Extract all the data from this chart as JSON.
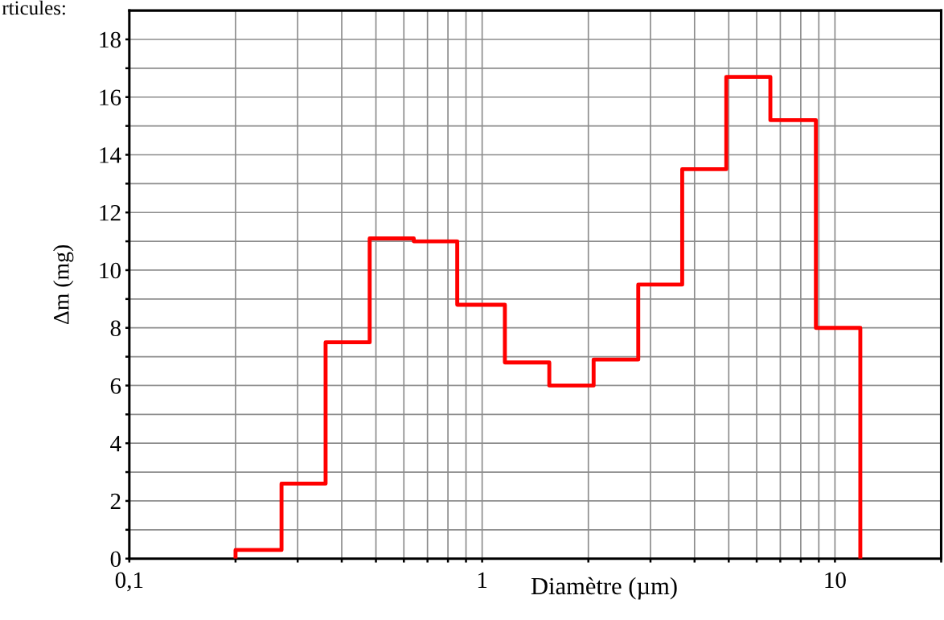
{
  "chart_data": {
    "type": "histogram",
    "xlabel": "Diamètre (µm)",
    "ylabel": "Δm (mg)",
    "annotations": [
      "rticules:"
    ],
    "bins": [
      0.2,
      0.27,
      0.36,
      0.48,
      0.64,
      0.85,
      1.16,
      1.55,
      2.07,
      2.77,
      3.69,
      4.92,
      6.56,
      8.83,
      11.8
    ],
    "values": [
      0.3,
      2.6,
      7.5,
      11.1,
      11.0,
      8.8,
      6.8,
      6.0,
      6.9,
      9.5,
      13.5,
      16.7,
      15.2,
      8.0
    ],
    "color": "#ff0000",
    "log": "x",
    "grid": true,
    "xlim": [
      0.1,
      20
    ],
    "xticks": [
      {
        "value": 0.1,
        "label": "0,1"
      },
      {
        "value": 0.2,
        "label": null
      },
      {
        "value": 0.3,
        "label": null
      },
      {
        "value": 0.4,
        "label": null
      },
      {
        "value": 0.5,
        "label": null
      },
      {
        "value": 0.6,
        "label": null
      },
      {
        "value": 0.7,
        "label": null
      },
      {
        "value": 0.8,
        "label": null
      },
      {
        "value": 0.9,
        "label": null
      },
      1,
      {
        "value": 2,
        "label": null
      },
      {
        "value": 3,
        "label": null
      },
      {
        "value": 4,
        "label": null
      },
      {
        "value": 5,
        "label": null
      },
      {
        "value": 6,
        "label": null
      },
      {
        "value": 7,
        "label": null
      },
      {
        "value": 8,
        "label": null
      },
      {
        "value": 9,
        "label": null
      },
      10,
      {
        "value": 20,
        "label": null
      }
    ],
    "ylim": [
      0,
      19
    ],
    "yticks": [
      0,
      {
        "value": 1,
        "label": null
      },
      2,
      {
        "value": 3,
        "label": null
      },
      4,
      {
        "value": 5,
        "label": null
      },
      6,
      {
        "value": 7,
        "label": null
      },
      8,
      {
        "value": 9,
        "label": null
      },
      10,
      {
        "value": 11,
        "label": null
      },
      12,
      {
        "value": 13,
        "label": null
      },
      14,
      {
        "value": 15,
        "label": null
      },
      16,
      {
        "value": 17,
        "label": null
      },
      18
    ]
  }
}
